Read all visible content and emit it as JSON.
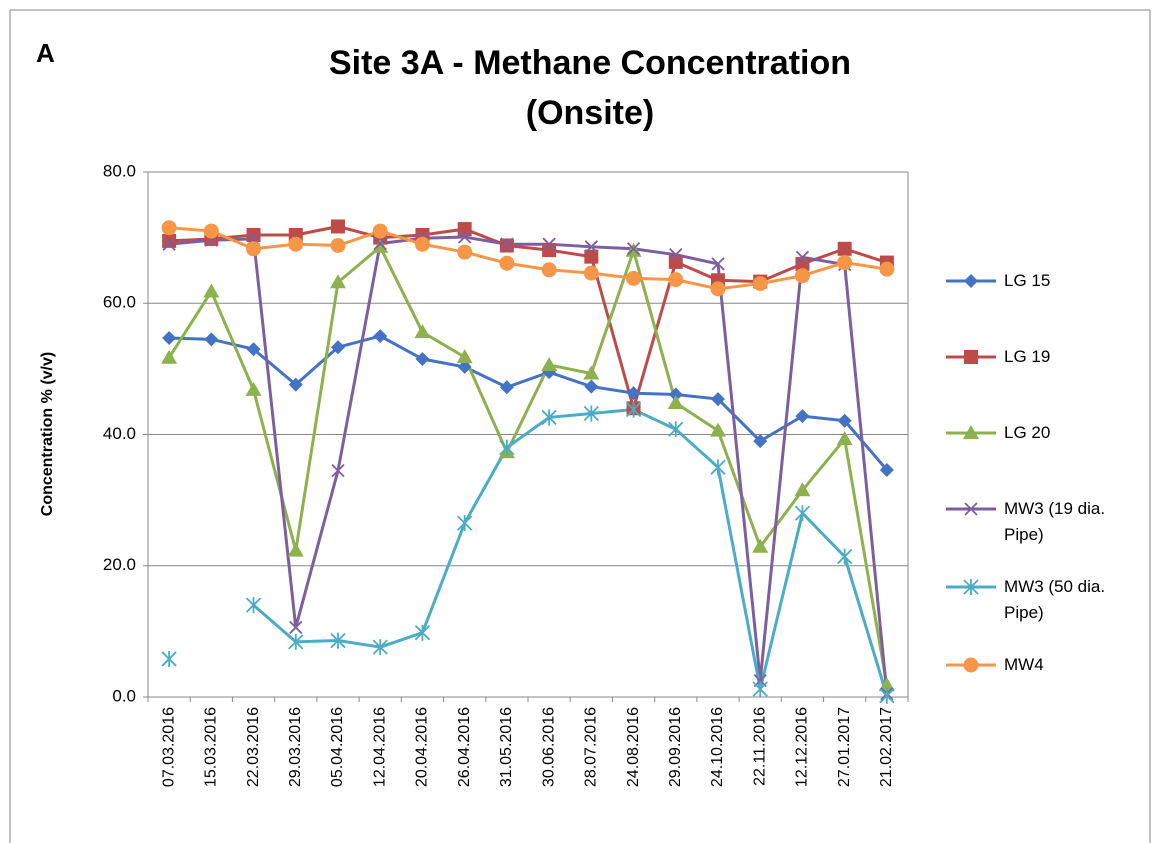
{
  "chart_data": {
    "type": "line",
    "panel_label": "A",
    "title": "Site 3A - Methane Concentration (Onsite)",
    "y_label": "Concentration % (v/v)",
    "categories": [
      "07.03.2016",
      "15.03.2016",
      "22.03.2016",
      "29.03.2016",
      "05.04.2016",
      "12.04.2016",
      "20.04.2016",
      "26.04.2016",
      "31.05.2016",
      "30.06.2016",
      "28.07.2016",
      "24.08.2016",
      "29.09.2016",
      "24.10.2016",
      "22.11.2016",
      "12.12.2016",
      "27.01.2017",
      "21.02.2017"
    ],
    "series": [
      {
        "name": "LG 15",
        "color": "#4472c4",
        "marker": "diamond",
        "values": [
          54.7,
          54.5,
          53,
          47.6,
          53.3,
          55,
          51.5,
          50.3,
          47.2,
          49.5,
          47.3,
          46.3,
          46.1,
          45.4,
          39,
          42.8,
          42.1,
          34.6
        ]
      },
      {
        "name": "LG 19",
        "color": "#be4b48",
        "marker": "square",
        "values": [
          69.5,
          69.8,
          70.4,
          70.4,
          71.7,
          70,
          70.4,
          71.3,
          68.8,
          68.1,
          67.1,
          44,
          66.3,
          63.5,
          63.3,
          66,
          68.3,
          66.2
        ]
      },
      {
        "name": "LG 20",
        "color": "#8cb14d",
        "marker": "triangle",
        "values": [
          51.7,
          61.8,
          46.8,
          22.3,
          63.2,
          68.6,
          55.6,
          51.8,
          37.3,
          50.6,
          49.3,
          68,
          44.8,
          40.6,
          22.9,
          31.5,
          39.3,
          1.8
        ]
      },
      {
        "name": "MW3 (19 dia. Pipe)",
        "color": "#7d5fa0",
        "marker": "x",
        "values": [
          69,
          69.6,
          69.8,
          10.6,
          34.5,
          69.1,
          69.9,
          70.1,
          69,
          69,
          68.6,
          68.3,
          67.4,
          66,
          2.5,
          67,
          65.9,
          0.5
        ]
      },
      {
        "name": "MW3 (50 dia. Pipe)",
        "color": "#4aacc6",
        "marker": "star",
        "values": [
          5.8,
          null,
          14,
          8.4,
          8.6,
          7.6,
          9.8,
          26.5,
          38,
          42.6,
          43.2,
          43.8,
          40.8,
          35,
          1.2,
          28,
          21.4,
          0.2
        ]
      },
      {
        "name": "MW4",
        "color": "#f69646",
        "marker": "circle",
        "values": [
          71.5,
          71,
          68.3,
          69,
          68.8,
          71,
          69,
          67.8,
          66.1,
          65.1,
          64.6,
          63.8,
          63.6,
          62.2,
          63,
          64.2,
          66.2,
          65.2
        ]
      }
    ],
    "ylim": [
      0,
      80
    ],
    "yticks": [
      {
        "value": 0,
        "label": "0.0"
      },
      {
        "value": 20,
        "label": "20.0"
      },
      {
        "value": 40,
        "label": "40.0"
      },
      {
        "value": 60,
        "label": "60.0"
      },
      {
        "value": 80,
        "label": "80.0"
      }
    ],
    "grid": true,
    "legend": "right"
  }
}
